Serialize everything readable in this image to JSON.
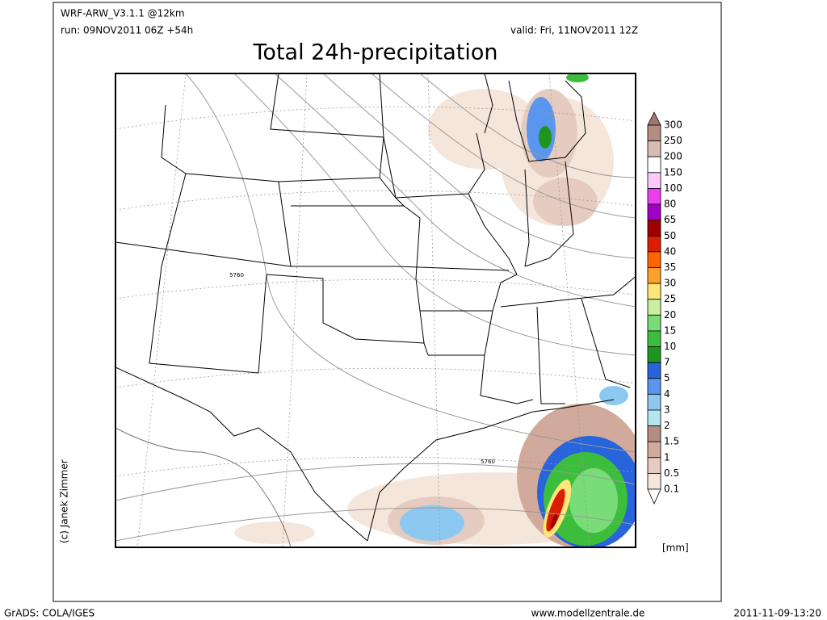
{
  "header": {
    "model": "WRF-ARW_V3.1.1 @12km",
    "run": "run: 09NOV2011 06Z +54h",
    "valid": "valid: Fri, 11NOV2011 12Z",
    "title": "Total 24h-precipitation"
  },
  "map": {
    "contour_labels": [
      "5760",
      "5760"
    ]
  },
  "legend": {
    "levels": [
      300,
      250,
      200,
      150,
      100,
      80,
      65,
      50,
      40,
      35,
      30,
      25,
      20,
      15,
      10,
      7,
      5,
      4,
      3,
      2,
      1.5,
      1,
      0.5,
      0.1
    ],
    "colors": [
      "#a0786e",
      "#b48c82",
      "#d7bcb2",
      "#ffffff",
      "#ffc8ff",
      "#f03cf0",
      "#a000c8",
      "#a00000",
      "#dc1e00",
      "#ff6400",
      "#ffa028",
      "#ffe678",
      "#c8f0a0",
      "#78dc78",
      "#3cbe3c",
      "#1e961e",
      "#2864dc",
      "#5a96f0",
      "#8cc8f0",
      "#b4e6f0",
      "#b48c82",
      "#d2aa9b",
      "#e6ccc0",
      "#f5e6dc",
      "#ffffff"
    ],
    "unit": "[mm]"
  },
  "credit": "(c) Janek Zimmer",
  "footer": {
    "left": "GrADS: COLA/IGES",
    "center": "www.modellzentrale.de",
    "right": "2011-11-09-13:20"
  }
}
